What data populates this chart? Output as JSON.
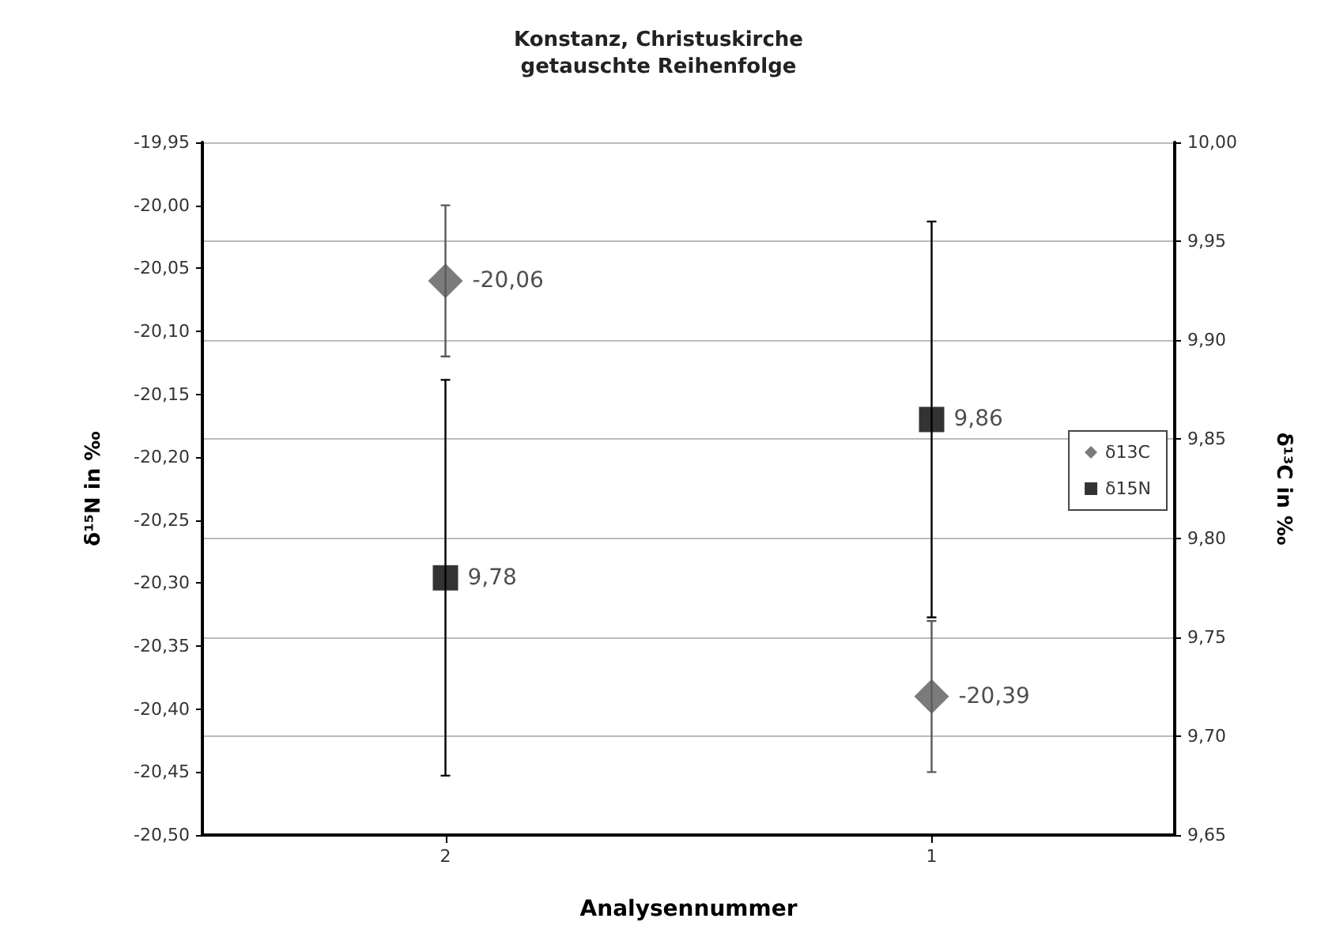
{
  "chart_data": {
    "type": "scatter",
    "title": "Konstanz, Christuskirche\ngetauschte Reihenfolge",
    "xlabel": "Analysennummer",
    "ylabel": "δ¹⁵N in ‰",
    "y2label": "δ¹³C in ‰",
    "categories": [
      "2",
      "1"
    ],
    "series": [
      {
        "name": "δ13C",
        "color": "#5a5a5a",
        "marker": "diamond",
        "values": [
          -20.06,
          -20.39
        ],
        "errors": [
          0.06,
          0.06
        ],
        "value_labels": [
          "-20,06",
          "-20,39"
        ]
      },
      {
        "name": "δ15N",
        "color": "#000000",
        "marker": "square",
        "axis": "y2",
        "values": [
          9.78,
          9.86
        ],
        "errors": [
          0.1,
          0.1
        ],
        "value_labels": [
          "9,78",
          "9,86"
        ]
      }
    ],
    "ylim": [
      -20.5,
      -19.95
    ],
    "yticks": [
      {
        "value": -20.5,
        "label": "-20,50"
      },
      {
        "value": -20.45,
        "label": "-20,45"
      },
      {
        "value": -20.4,
        "label": "-20,40"
      },
      {
        "value": -20.35,
        "label": "-20,35"
      },
      {
        "value": -20.3,
        "label": "-20,30"
      },
      {
        "value": -20.25,
        "label": "-20,25"
      },
      {
        "value": -20.2,
        "label": "-20,20"
      },
      {
        "value": -20.15,
        "label": "-20,15"
      },
      {
        "value": -20.1,
        "label": "-20,10"
      },
      {
        "value": -20.05,
        "label": "-20,05"
      },
      {
        "value": -20.0,
        "label": "-20,00"
      },
      {
        "value": -19.95,
        "label": "-19,95"
      }
    ],
    "y2lim": [
      9.65,
      10.0
    ],
    "y2ticks": [
      {
        "value": 9.65,
        "label": "9,65"
      },
      {
        "value": 9.7,
        "label": "9,70"
      },
      {
        "value": 9.75,
        "label": "9,75"
      },
      {
        "value": 9.8,
        "label": "9,80"
      },
      {
        "value": 9.85,
        "label": "9,85"
      },
      {
        "value": 9.9,
        "label": "9,90"
      },
      {
        "value": 9.95,
        "label": "9,95"
      },
      {
        "value": 10.0,
        "label": "10,00"
      }
    ],
    "grid": true,
    "legend": "right"
  }
}
